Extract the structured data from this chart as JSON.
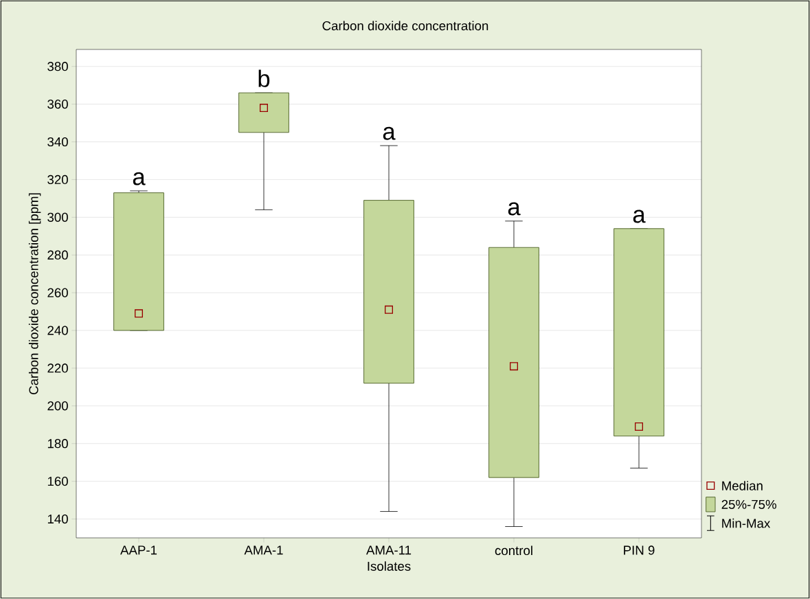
{
  "chart_data": {
    "type": "box",
    "title": "Carbon dioxide concentration",
    "xlabel": "Isolates",
    "ylabel": "Carbon dioxide concentration [ppm]",
    "categories": [
      "AAP-1",
      "AMA-1",
      "AMA-11",
      "control",
      "PIN 9"
    ],
    "color": "#c4d79b",
    "boxes": [
      {
        "low": 240,
        "q1": 240,
        "median": 249,
        "q3": 313,
        "high": 314
      },
      {
        "low": 304,
        "q1": 345,
        "median": 358,
        "q3": 366,
        "high": 366
      },
      {
        "low": 144,
        "q1": 212,
        "median": 251,
        "q3": 309,
        "high": 338
      },
      {
        "low": 136,
        "q1": 162,
        "median": 221,
        "q3": 284,
        "high": 298
      },
      {
        "low": 167,
        "q1": 184,
        "median": 189,
        "q3": 294,
        "high": 294
      }
    ],
    "ylim": [
      130,
      389
    ],
    "yticks": [
      140,
      160,
      180,
      200,
      220,
      240,
      260,
      280,
      300,
      320,
      340,
      360,
      380
    ],
    "grid": "y",
    "annotations": [
      "a",
      "b",
      "a",
      "a",
      "a",
      "Median",
      "25%-75%",
      "Min-Max"
    ]
  }
}
